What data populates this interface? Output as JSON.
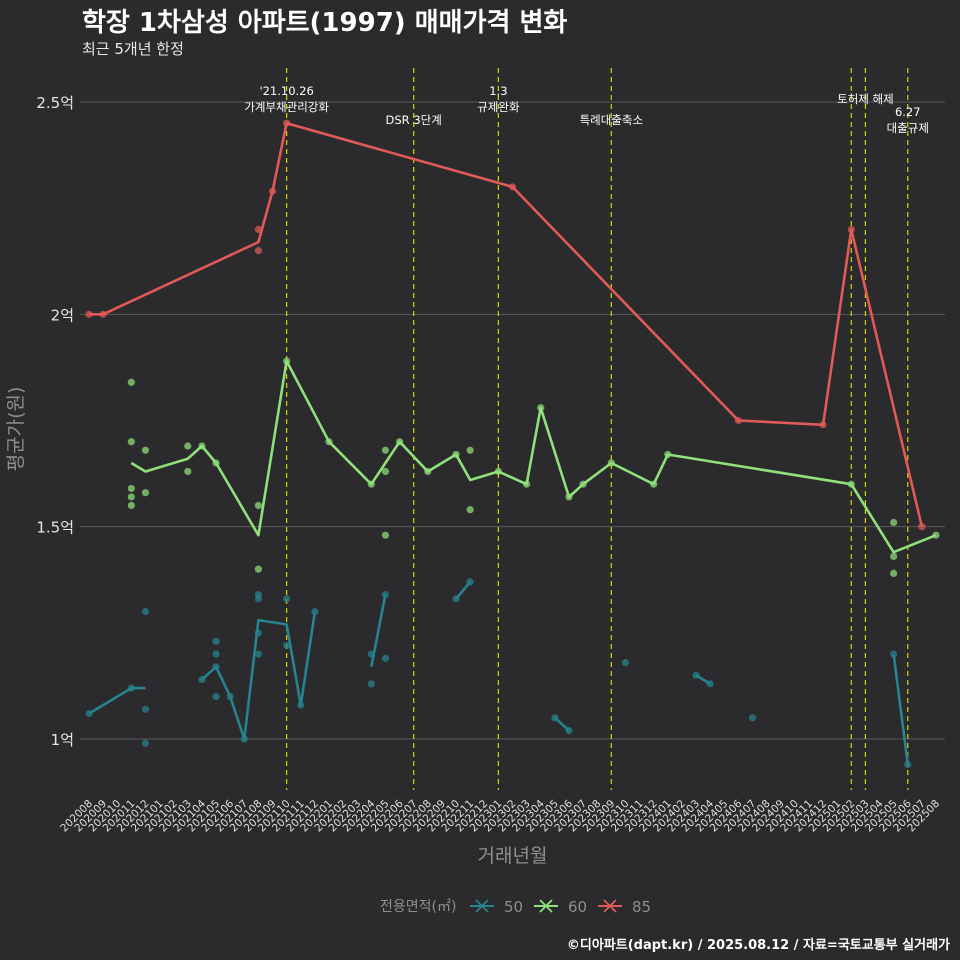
{
  "title": "학장 1차삼성 아파트(1997) 매매가격 변화",
  "subtitle": "최근 5개년 한정",
  "caption": "©디아파트(dapt.kr) / 2025.08.12 / 자료=국토교통부 실거래가",
  "colors": {
    "background": "#2b2b2d",
    "grid": "#5a5a5a",
    "event_line": "#d4d400",
    "series_50": "#26838f",
    "series_60": "#8fe07a",
    "series_85": "#e05a57"
  },
  "chart_data": {
    "type": "line",
    "xlabel": "거래년월",
    "ylabel": "평균가(원)",
    "y_unit": "억",
    "ylim": [
      0.88,
      2.58
    ],
    "y_ticks": [
      {
        "value": 1.0,
        "label": "1억"
      },
      {
        "value": 1.5,
        "label": "1.5억"
      },
      {
        "value": 2.0,
        "label": "2억"
      },
      {
        "value": 2.5,
        "label": "2.5억"
      }
    ],
    "x_categories": [
      "202008",
      "202009",
      "202010",
      "202011",
      "202012",
      "202101",
      "202102",
      "202103",
      "202104",
      "202105",
      "202106",
      "202107",
      "202108",
      "202109",
      "202110",
      "202111",
      "202112",
      "202201",
      "202202",
      "202203",
      "202204",
      "202205",
      "202206",
      "202207",
      "202208",
      "202209",
      "202210",
      "202211",
      "202212",
      "202301",
      "202302",
      "202303",
      "202304",
      "202305",
      "202306",
      "202307",
      "202308",
      "202309",
      "202310",
      "202311",
      "202312",
      "202401",
      "202402",
      "202403",
      "202404",
      "202405",
      "202406",
      "202407",
      "202408",
      "202409",
      "202410",
      "202411",
      "202412",
      "202501",
      "202502",
      "202503",
      "202504",
      "202505",
      "202506",
      "202507",
      "202508"
    ],
    "grid": true,
    "legend": {
      "title": "전용면적(㎡)",
      "position": "bottom",
      "entries": [
        "50",
        "60",
        "85"
      ]
    },
    "events": [
      {
        "x": "202110",
        "label_lines": [
          "'21.10.26",
          "가계부채관리강화"
        ],
        "label_row": 0
      },
      {
        "x": "202207",
        "label_lines": [
          "DSR 3단계"
        ],
        "label_row": 1
      },
      {
        "x": "202301",
        "label_lines": [
          "1.3",
          "규제완화"
        ],
        "label_row": 0
      },
      {
        "x": "202309",
        "label_lines": [
          "특례대출축소"
        ],
        "label_row": 1
      },
      {
        "x": "202502",
        "label_lines": [],
        "label_row": 0
      },
      {
        "x": "202503",
        "label_lines": [
          "토허제 해제"
        ],
        "label_row": 2
      },
      {
        "x": "202506",
        "label_lines": [
          "6.27",
          "대출규제"
        ],
        "label_row": 3
      }
    ],
    "series": [
      {
        "name": "50",
        "line": [
          {
            "x": "202008",
            "y": 1.06
          },
          {
            "x": "202011",
            "y": 1.12
          },
          {
            "x": "202012",
            "y": 1.12
          },
          {
            "x": "202104",
            "y": 1.14
          },
          {
            "x": "202105",
            "y": 1.17
          },
          {
            "x": "202106",
            "y": 1.1
          },
          {
            "x": "202107",
            "y": 1.0
          },
          {
            "x": "202108",
            "y": 1.28
          },
          {
            "x": "202110",
            "y": 1.27
          },
          {
            "x": "202111",
            "y": 1.08
          },
          {
            "x": "202112",
            "y": 1.3
          },
          {
            "x": "202204",
            "y": 1.17
          },
          {
            "x": "202205",
            "y": 1.34
          },
          {
            "x": "202210",
            "y": 1.33
          },
          {
            "x": "202211",
            "y": 1.37
          },
          {
            "x": "202305",
            "y": 1.05
          },
          {
            "x": "202306",
            "y": 1.02
          },
          {
            "x": "202403",
            "y": 1.15
          },
          {
            "x": "202404",
            "y": 1.13
          },
          {
            "x": "202505",
            "y": 1.2
          },
          {
            "x": "202506",
            "y": 0.94
          }
        ],
        "breaks_after": [
          "202012",
          "202112",
          "202205",
          "202211",
          "202306",
          "202404"
        ],
        "points": [
          {
            "x": "202008",
            "y": 1.06
          },
          {
            "x": "202011",
            "y": 1.12
          },
          {
            "x": "202012",
            "y": 1.3
          },
          {
            "x": "202012",
            "y": 1.07
          },
          {
            "x": "202012",
            "y": 0.99
          },
          {
            "x": "202104",
            "y": 1.14
          },
          {
            "x": "202105",
            "y": 1.23
          },
          {
            "x": "202105",
            "y": 1.2
          },
          {
            "x": "202105",
            "y": 1.17
          },
          {
            "x": "202105",
            "y": 1.1
          },
          {
            "x": "202106",
            "y": 1.1
          },
          {
            "x": "202107",
            "y": 1.0
          },
          {
            "x": "202108",
            "y": 1.34
          },
          {
            "x": "202108",
            "y": 1.33
          },
          {
            "x": "202108",
            "y": 1.25
          },
          {
            "x": "202108",
            "y": 1.2
          },
          {
            "x": "202110",
            "y": 1.33
          },
          {
            "x": "202110",
            "y": 1.22
          },
          {
            "x": "202111",
            "y": 1.08
          },
          {
            "x": "202112",
            "y": 1.3
          },
          {
            "x": "202204",
            "y": 1.2
          },
          {
            "x": "202204",
            "y": 1.13
          },
          {
            "x": "202205",
            "y": 1.34
          },
          {
            "x": "202205",
            "y": 1.19
          },
          {
            "x": "202210",
            "y": 1.33
          },
          {
            "x": "202211",
            "y": 1.37
          },
          {
            "x": "202305",
            "y": 1.05
          },
          {
            "x": "202306",
            "y": 1.02
          },
          {
            "x": "202310",
            "y": 1.18
          },
          {
            "x": "202403",
            "y": 1.15
          },
          {
            "x": "202404",
            "y": 1.13
          },
          {
            "x": "202407",
            "y": 1.05
          },
          {
            "x": "202505",
            "y": 1.2
          },
          {
            "x": "202506",
            "y": 0.94
          }
        ]
      },
      {
        "name": "60",
        "line": [
          {
            "x": "202011",
            "y": 1.65
          },
          {
            "x": "202012",
            "y": 1.63
          },
          {
            "x": "202103",
            "y": 1.66
          },
          {
            "x": "202104",
            "y": 1.69
          },
          {
            "x": "202105",
            "y": 1.65
          },
          {
            "x": "202108",
            "y": 1.48
          },
          {
            "x": "202110",
            "y": 1.89
          },
          {
            "x": "202201",
            "y": 1.7
          },
          {
            "x": "202204",
            "y": 1.6
          },
          {
            "x": "202206",
            "y": 1.7
          },
          {
            "x": "202208",
            "y": 1.63
          },
          {
            "x": "202210",
            "y": 1.67
          },
          {
            "x": "202211",
            "y": 1.61
          },
          {
            "x": "202301",
            "y": 1.63
          },
          {
            "x": "202303",
            "y": 1.6
          },
          {
            "x": "202304",
            "y": 1.78
          },
          {
            "x": "202306",
            "y": 1.57
          },
          {
            "x": "202307",
            "y": 1.6
          },
          {
            "x": "202309",
            "y": 1.65
          },
          {
            "x": "202312",
            "y": 1.6
          },
          {
            "x": "202401",
            "y": 1.67
          },
          {
            "x": "202502",
            "y": 1.6
          },
          {
            "x": "202505",
            "y": 1.44
          },
          {
            "x": "202508",
            "y": 1.48
          }
        ],
        "breaks_after": [],
        "points": [
          {
            "x": "202011",
            "y": 1.84
          },
          {
            "x": "202011",
            "y": 1.7
          },
          {
            "x": "202011",
            "y": 1.59
          },
          {
            "x": "202011",
            "y": 1.57
          },
          {
            "x": "202011",
            "y": 1.55
          },
          {
            "x": "202012",
            "y": 1.68
          },
          {
            "x": "202012",
            "y": 1.58
          },
          {
            "x": "202103",
            "y": 1.69
          },
          {
            "x": "202103",
            "y": 1.63
          },
          {
            "x": "202104",
            "y": 1.69
          },
          {
            "x": "202105",
            "y": 1.65
          },
          {
            "x": "202108",
            "y": 1.55
          },
          {
            "x": "202108",
            "y": 1.4
          },
          {
            "x": "202110",
            "y": 1.89
          },
          {
            "x": "202201",
            "y": 1.7
          },
          {
            "x": "202204",
            "y": 1.6
          },
          {
            "x": "202205",
            "y": 1.68
          },
          {
            "x": "202205",
            "y": 1.63
          },
          {
            "x": "202205",
            "y": 1.48
          },
          {
            "x": "202206",
            "y": 1.7
          },
          {
            "x": "202208",
            "y": 1.63
          },
          {
            "x": "202210",
            "y": 1.67
          },
          {
            "x": "202211",
            "y": 1.68
          },
          {
            "x": "202211",
            "y": 1.54
          },
          {
            "x": "202301",
            "y": 1.63
          },
          {
            "x": "202303",
            "y": 1.6
          },
          {
            "x": "202304",
            "y": 1.78
          },
          {
            "x": "202306",
            "y": 1.57
          },
          {
            "x": "202307",
            "y": 1.6
          },
          {
            "x": "202309",
            "y": 1.65
          },
          {
            "x": "202312",
            "y": 1.6
          },
          {
            "x": "202401",
            "y": 1.67
          },
          {
            "x": "202502",
            "y": 1.6
          },
          {
            "x": "202505",
            "y": 1.51
          },
          {
            "x": "202505",
            "y": 1.43
          },
          {
            "x": "202505",
            "y": 1.39
          },
          {
            "x": "202508",
            "y": 1.48
          }
        ]
      },
      {
        "name": "85",
        "line": [
          {
            "x": "202008",
            "y": 2.0
          },
          {
            "x": "202009",
            "y": 2.0
          },
          {
            "x": "202108",
            "y": 2.17
          },
          {
            "x": "202109",
            "y": 2.29
          },
          {
            "x": "202110",
            "y": 2.45
          },
          {
            "x": "202302",
            "y": 2.3
          },
          {
            "x": "202406",
            "y": 1.75
          },
          {
            "x": "202412",
            "y": 1.74
          },
          {
            "x": "202502",
            "y": 2.2
          },
          {
            "x": "202507",
            "y": 1.5
          }
        ],
        "breaks_after": [],
        "points": [
          {
            "x": "202008",
            "y": 2.0
          },
          {
            "x": "202009",
            "y": 2.0
          },
          {
            "x": "202108",
            "y": 2.2
          },
          {
            "x": "202108",
            "y": 2.15
          },
          {
            "x": "202109",
            "y": 2.29
          },
          {
            "x": "202110",
            "y": 2.45
          },
          {
            "x": "202302",
            "y": 2.3
          },
          {
            "x": "202406",
            "y": 1.75
          },
          {
            "x": "202412",
            "y": 1.74
          },
          {
            "x": "202502",
            "y": 2.2
          },
          {
            "x": "202507",
            "y": 1.5
          }
        ]
      }
    ]
  }
}
